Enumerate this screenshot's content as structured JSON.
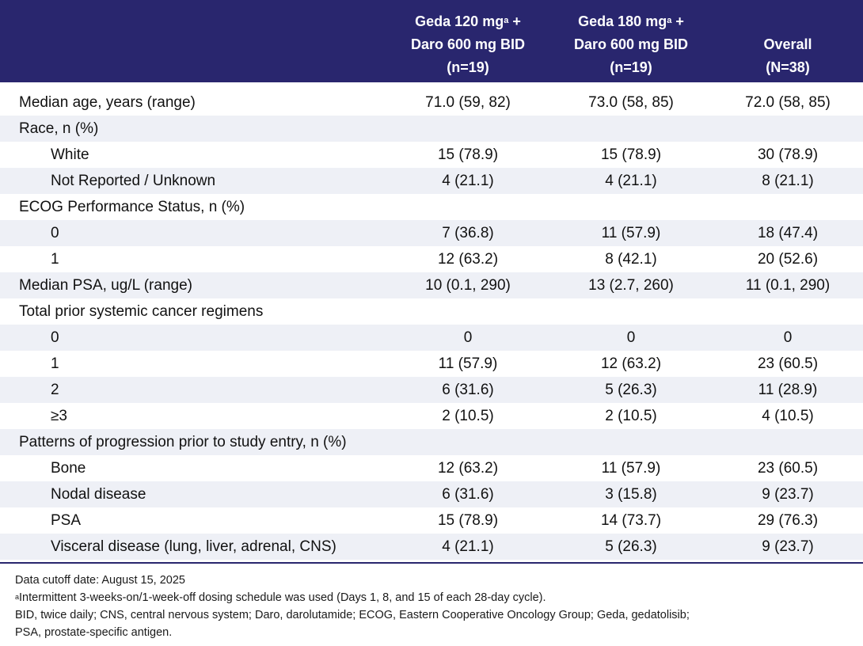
{
  "header": {
    "col1": {
      "line1": "Geda 120 mg",
      "sup": "a",
      "line1b": " +",
      "line2": "Daro 600 mg BID",
      "line3": "(n=19)"
    },
    "col2": {
      "line1": "Geda 180 mg",
      "sup": "a",
      "line1b": " +",
      "line2": "Daro 600 mg BID",
      "line3": "(n=19)"
    },
    "col3": {
      "line1": "Overall",
      "line2": "(N=38)"
    }
  },
  "rows": [
    {
      "label": "Median age, years (range)",
      "c1": "71.0 (59, 82)",
      "c2": "73.0 (58, 85)",
      "c3": "72.0 (58, 85)"
    },
    {
      "label": "Race, n (%)",
      "c1": "",
      "c2": "",
      "c3": ""
    },
    {
      "label": "White",
      "c1": "15 (78.9)",
      "c2": "15 (78.9)",
      "c3": "30 (78.9)"
    },
    {
      "label": "Not Reported / Unknown",
      "c1": "4 (21.1)",
      "c2": "4 (21.1)",
      "c3": "8 (21.1)"
    },
    {
      "label": "ECOG Performance Status, n (%)",
      "c1": "",
      "c2": "",
      "c3": ""
    },
    {
      "label": "0",
      "c1": "7 (36.8)",
      "c2": "11 (57.9)",
      "c3": "18 (47.4)"
    },
    {
      "label": "1",
      "c1": "12 (63.2)",
      "c2": "8 (42.1)",
      "c3": "20 (52.6)"
    },
    {
      "label": "Median PSA, ug/L (range)",
      "c1": "10 (0.1, 290)",
      "c2": "13 (2.7, 260)",
      "c3": "11 (0.1, 290)"
    },
    {
      "label": "Total prior systemic cancer regimens",
      "c1": "",
      "c2": "",
      "c3": ""
    },
    {
      "label": "0",
      "c1": "0",
      "c2": "0",
      "c3": "0"
    },
    {
      "label": "1",
      "c1": "11 (57.9)",
      "c2": "12 (63.2)",
      "c3": "23 (60.5)"
    },
    {
      "label": "2",
      "c1": "6 (31.6)",
      "c2": "5 (26.3)",
      "c3": "11 (28.9)"
    },
    {
      "label": "≥3",
      "c1": "2 (10.5)",
      "c2": "2 (10.5)",
      "c3": "4 (10.5)"
    },
    {
      "label": "Patterns of progression prior to study entry, n (%)",
      "c1": "",
      "c2": "",
      "c3": ""
    },
    {
      "label": "Bone",
      "c1": "12 (63.2)",
      "c2": "11 (57.9)",
      "c3": "23 (60.5)"
    },
    {
      "label": "Nodal disease",
      "c1": "6 (31.6)",
      "c2": "3 (15.8)",
      "c3": "9 (23.7)"
    },
    {
      "label": "PSA",
      "c1": "15 (78.9)",
      "c2": "14 (73.7)",
      "c3": "29 (76.3)"
    },
    {
      "label": "Visceral disease (lung, liver, adrenal, CNS)",
      "c1": "4 (21.1)",
      "c2": "5 (26.3)",
      "c3": "9 (23.7)"
    }
  ],
  "footer": {
    "line1": "Data cutoff date: August 15, 2025",
    "line2_sup": "a",
    "line2": "Intermittent 3-weeks-on/1-week-off dosing schedule was used (Days 1, 8, and 15 of each 28-day cycle).",
    "line3": "BID, twice daily; CNS, central nervous system; Daro, darolutamide; ECOG, Eastern Cooperative Oncology Group; Geda, gedatolisib;",
    "line4": "PSA, prostate-specific antigen."
  },
  "colors": {
    "header_bg": "#29266e",
    "row_shade": "#eef0f6",
    "rule": "#29266e"
  }
}
